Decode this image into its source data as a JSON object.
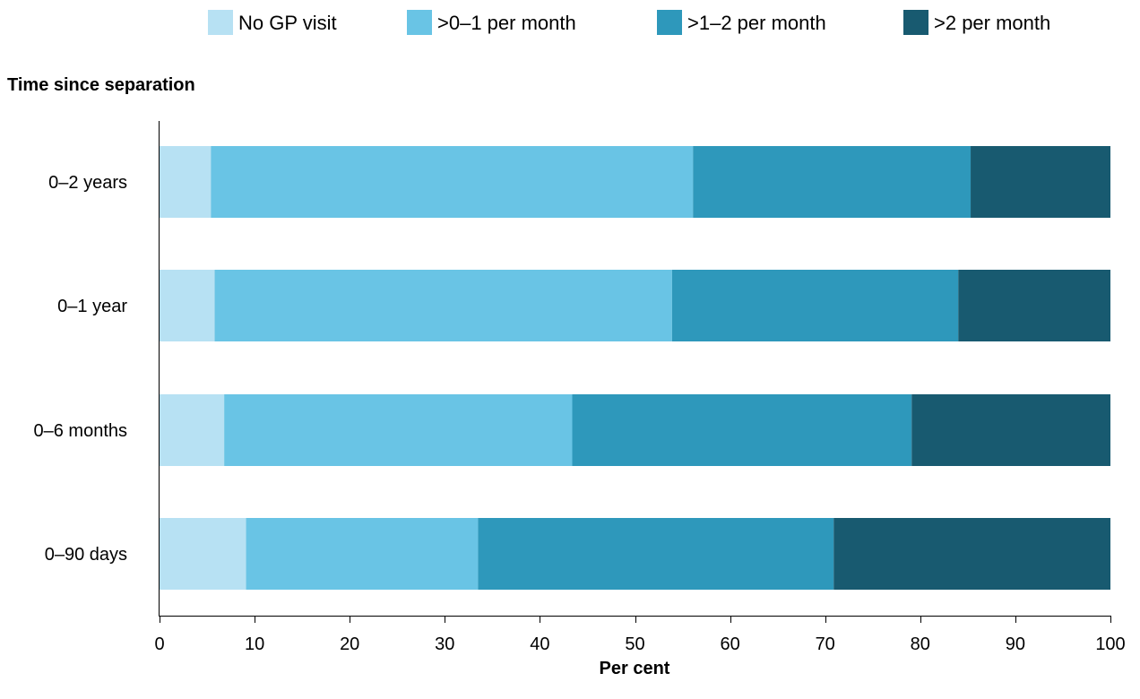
{
  "chart_data": {
    "type": "bar",
    "orientation": "horizontal",
    "stacked": true,
    "categories": [
      "0–2 years",
      "0–1 year",
      "0–6 months",
      "0–90 days"
    ],
    "series": [
      {
        "name": "No GP visit",
        "color": "#b7e1f3",
        "values": [
          5.4,
          5.8,
          6.8,
          9.1
        ]
      },
      {
        "name": ">0–1 per month",
        "color": "#69c4e5",
        "values": [
          50.7,
          48.1,
          36.6,
          24.4
        ]
      },
      {
        "name": ">1–2 per month",
        "color": "#2e98bb",
        "values": [
          29.2,
          30.1,
          35.7,
          37.4
        ]
      },
      {
        "name": ">2 per month",
        "color": "#185a70",
        "values": [
          14.7,
          16.0,
          20.9,
          29.1
        ]
      }
    ],
    "xlabel": "Per cent",
    "ylabel": "Time since separation",
    "xlim": [
      0,
      100
    ],
    "xticks": [
      "0",
      "10",
      "20",
      "30",
      "40",
      "50",
      "60",
      "70",
      "80",
      "90",
      "100"
    ],
    "grid": false,
    "legend_position": "top"
  }
}
